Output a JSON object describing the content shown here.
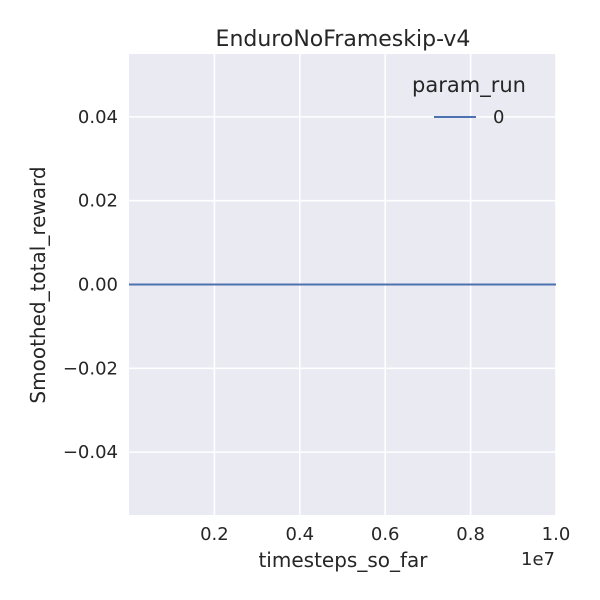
{
  "chart_data": {
    "type": "line",
    "title": "EnduroNoFrameskip-v4",
    "xlabel": "timesteps_so_far",
    "ylabel": "Smoothed_total_reward",
    "x_offset_label": "1e7",
    "xlim": [
      0.0,
      1.0
    ],
    "ylim": [
      -0.055,
      0.055
    ],
    "x_ticks": [
      0.2,
      0.4,
      0.6,
      0.8,
      1.0
    ],
    "x_tick_labels": [
      "0.2",
      "0.4",
      "0.6",
      "0.8",
      "1.0"
    ],
    "y_ticks": [
      0.04,
      0.02,
      0.0,
      -0.02,
      -0.04
    ],
    "y_tick_labels": [
      "0.04",
      "0.02",
      "0.00",
      "−0.02",
      "−0.04"
    ],
    "grid": true,
    "legend": {
      "title": "param_run",
      "position": "top-right",
      "entries": [
        "0"
      ]
    },
    "series": [
      {
        "name": "0",
        "color": "#4c72b0",
        "x": [
          0.0,
          1.0
        ],
        "y": [
          0.0,
          0.0
        ]
      }
    ],
    "colors": {
      "plot_background": "#eaeaf2",
      "grid": "#ffffff",
      "text": "#262626"
    }
  }
}
